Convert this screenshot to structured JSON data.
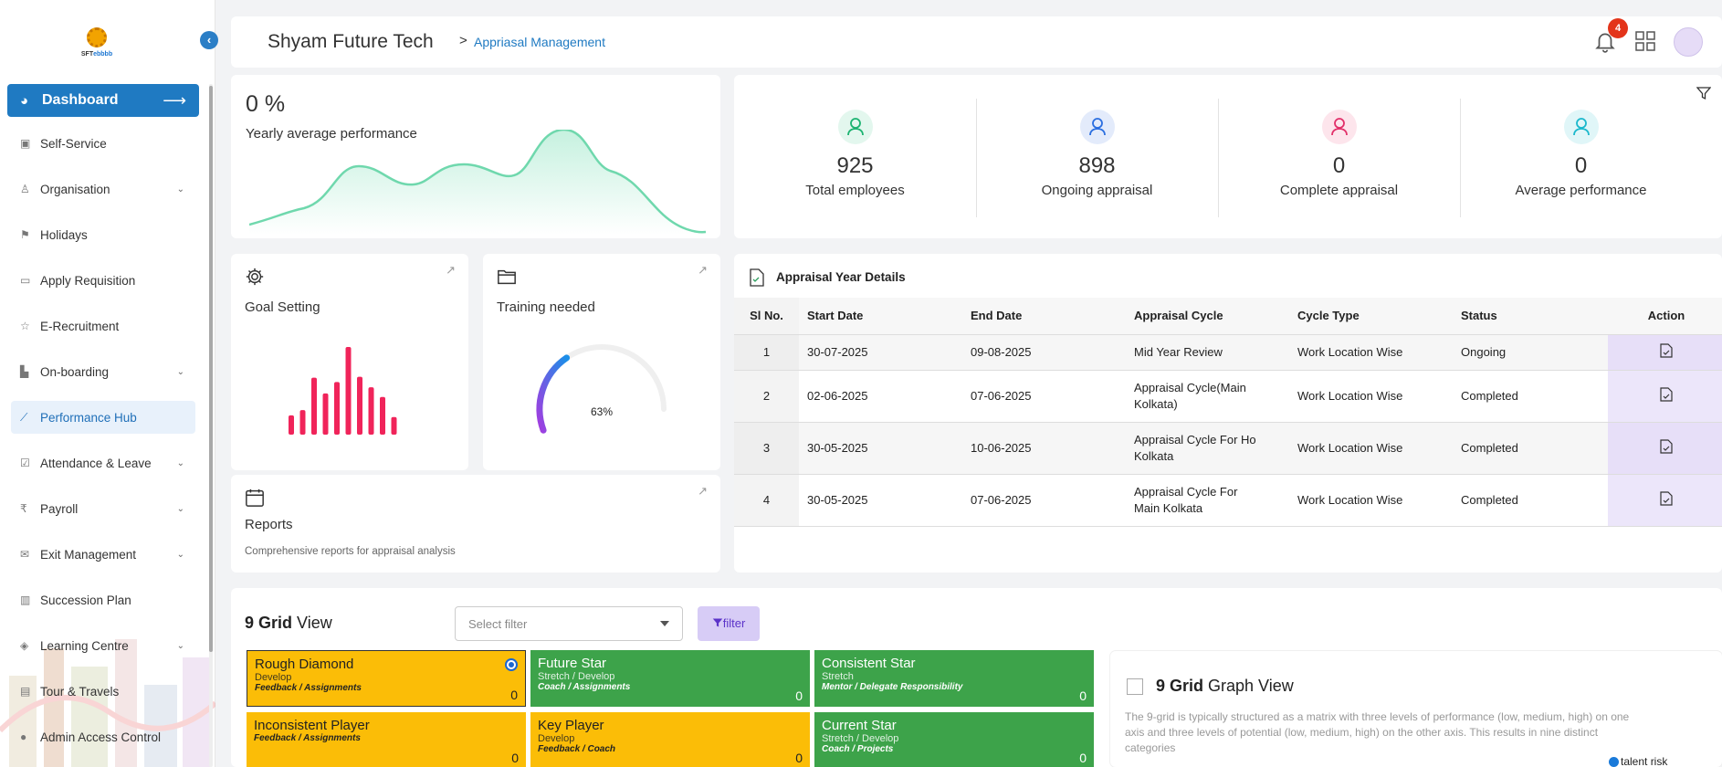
{
  "sidebar": {
    "logo_text": "SFT",
    "logo_text_accent": "ebbbb",
    "dashboard_label": "Dashboard",
    "items": [
      {
        "label": "Self-Service",
        "icon": "id-badge-icon",
        "expandable": false
      },
      {
        "label": "Organisation",
        "icon": "user-icon",
        "expandable": true
      },
      {
        "label": "Holidays",
        "icon": "flag-icon",
        "expandable": false
      },
      {
        "label": "Apply Requisition",
        "icon": "briefcase-icon",
        "expandable": false
      },
      {
        "label": "E-Recruitment",
        "icon": "star-icon",
        "expandable": false
      },
      {
        "label": "On-boarding",
        "icon": "building-icon",
        "expandable": true
      },
      {
        "label": "Performance Hub",
        "icon": "trend-chart-icon",
        "expandable": false
      },
      {
        "label": "Attendance & Leave",
        "icon": "check-square-icon",
        "expandable": true
      },
      {
        "label": "Payroll",
        "icon": "rupee-icon",
        "expandable": true
      },
      {
        "label": "Exit Management",
        "icon": "envelope-icon",
        "expandable": true
      },
      {
        "label": "Succession Plan",
        "icon": "bar-chart-icon",
        "expandable": false
      },
      {
        "label": "Learning Centre",
        "icon": "car-icon",
        "expandable": true
      },
      {
        "label": "Tour & Travels",
        "icon": "bus-icon",
        "expandable": false
      },
      {
        "label": "Admin Access Control",
        "icon": "person-icon",
        "expandable": false
      }
    ]
  },
  "header": {
    "company": "Shyam Future Tech",
    "breadcrumb_sep": ">",
    "breadcrumb": "Appriasal Management",
    "notification_count": "4"
  },
  "performance": {
    "value": "0 %",
    "label": "Yearly average performance"
  },
  "stats": [
    {
      "value": "925",
      "label": "Total employees",
      "color": "#1cb371",
      "bg": "#e3f7ee"
    },
    {
      "value": "898",
      "label": "Ongoing appraisal",
      "color": "#2b6fe0",
      "bg": "#e3ebfb"
    },
    {
      "value": "0",
      "label": "Complete appraisal",
      "color": "#e2306a",
      "bg": "#fde5ec"
    },
    {
      "value": "0",
      "label": "Average performance",
      "color": "#1bb8cc",
      "bg": "#e0f6f8"
    }
  ],
  "goal_setting": {
    "title": "Goal Setting",
    "bars": [
      0.22,
      0.28,
      0.65,
      0.47,
      0.6,
      1.0,
      0.66,
      0.54,
      0.43,
      0.2
    ]
  },
  "training": {
    "title": "Training needed",
    "percent": 63,
    "percent_label": "63%"
  },
  "reports": {
    "title": "Reports",
    "description": "Comprehensive reports for appraisal analysis"
  },
  "appraisal_table": {
    "title": "Appraisal Year Details",
    "columns": [
      "Sl No.",
      "Start Date",
      "End Date",
      "Appraisal Cycle",
      "Cycle Type",
      "Status",
      "Action"
    ],
    "rows": [
      {
        "sl": "1",
        "start": "30-07-2025",
        "end": "09-08-2025",
        "cycle": "Mid Year Review",
        "type": "Work Location Wise",
        "status": "Ongoing"
      },
      {
        "sl": "2",
        "start": "02-06-2025",
        "end": "07-06-2025",
        "cycle": "Appraisal Cycle(Main Kolkata)",
        "type": "Work Location Wise",
        "status": "Completed"
      },
      {
        "sl": "3",
        "start": "30-05-2025",
        "end": "10-06-2025",
        "cycle": "Appraisal Cycle For Ho Kolkata",
        "type": "Work Location Wise",
        "status": "Completed"
      },
      {
        "sl": "4",
        "start": "30-05-2025",
        "end": "07-06-2025",
        "cycle": "Appraisal Cycle For Main Kolkata",
        "type": "Work Location Wise",
        "status": "Completed"
      }
    ]
  },
  "nine_grid": {
    "title_bold": "9 Grid",
    "title_rest": " View",
    "select_placeholder": "Select filter",
    "filter_label": "filter",
    "cells": [
      {
        "title": "Rough Diamond",
        "sub": "Develop",
        "desc": "Feedback / Assignments",
        "count": "0",
        "color": "yellow",
        "selected": true
      },
      {
        "title": "Future Star",
        "sub": "Stretch / Develop",
        "desc": "Coach / Assignments",
        "count": "0",
        "color": "green",
        "selected": false
      },
      {
        "title": "Consistent Star",
        "sub": "Stretch",
        "desc": "Mentor / Delegate Responsibility",
        "count": "0",
        "color": "green",
        "selected": false
      },
      {
        "title": "Inconsistent Player",
        "sub": "",
        "desc": "Feedback / Assignments",
        "count": "0",
        "color": "yellow",
        "selected": false
      },
      {
        "title": "Key Player",
        "sub": "Develop",
        "desc": "Feedback / Coach",
        "count": "0",
        "color": "yellow",
        "selected": false
      },
      {
        "title": "Current Star",
        "sub": "Stretch / Develop",
        "desc": "Coach / Projects",
        "count": "0",
        "color": "green",
        "selected": false
      }
    ]
  },
  "graph_view": {
    "title_bold": "9 Grid",
    "title_rest": " Graph View",
    "description": "The 9-grid is typically structured as a matrix with three levels of performance (low, medium, high) on one axis and three levels of potential (low, medium, high) on the other axis. This results in nine distinct categories",
    "legend": "talent risk"
  }
}
